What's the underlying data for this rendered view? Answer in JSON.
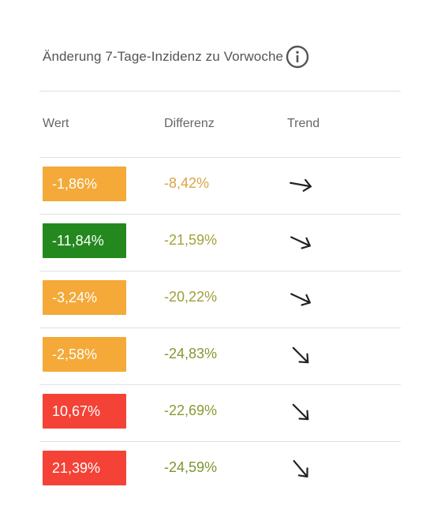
{
  "title": "Änderung 7-Tage-Inzidenz zu Vorwoche",
  "info_icon": "info-icon",
  "columns": {
    "wert": "Wert",
    "differenz": "Differenz",
    "trend": "Trend"
  },
  "rows": [
    {
      "wert": "-1,86%",
      "wert_color": "#f4a938",
      "differenz": "-8,42%",
      "diff_color": "#d9a443",
      "trend_angle": 10
    },
    {
      "wert": "-11,84%",
      "wert_color": "#23891f",
      "differenz": "-21,59%",
      "diff_color": "#a3a23d",
      "trend_angle": 25
    },
    {
      "wert": "-3,24%",
      "wert_color": "#f4a938",
      "differenz": "-20,22%",
      "diff_color": "#9e9e3d",
      "trend_angle": 25
    },
    {
      "wert": "-2,58%",
      "wert_color": "#f4a938",
      "differenz": "-24,83%",
      "diff_color": "#849734",
      "trend_angle": 45
    },
    {
      "wert": "10,67%",
      "wert_color": "#f44237",
      "differenz": "-22,69%",
      "diff_color": "#8b9a34",
      "trend_angle": 45
    },
    {
      "wert": "21,39%",
      "wert_color": "#f44237",
      "differenz": "-24,59%",
      "diff_color": "#7c9532",
      "trend_angle": 50
    }
  ]
}
